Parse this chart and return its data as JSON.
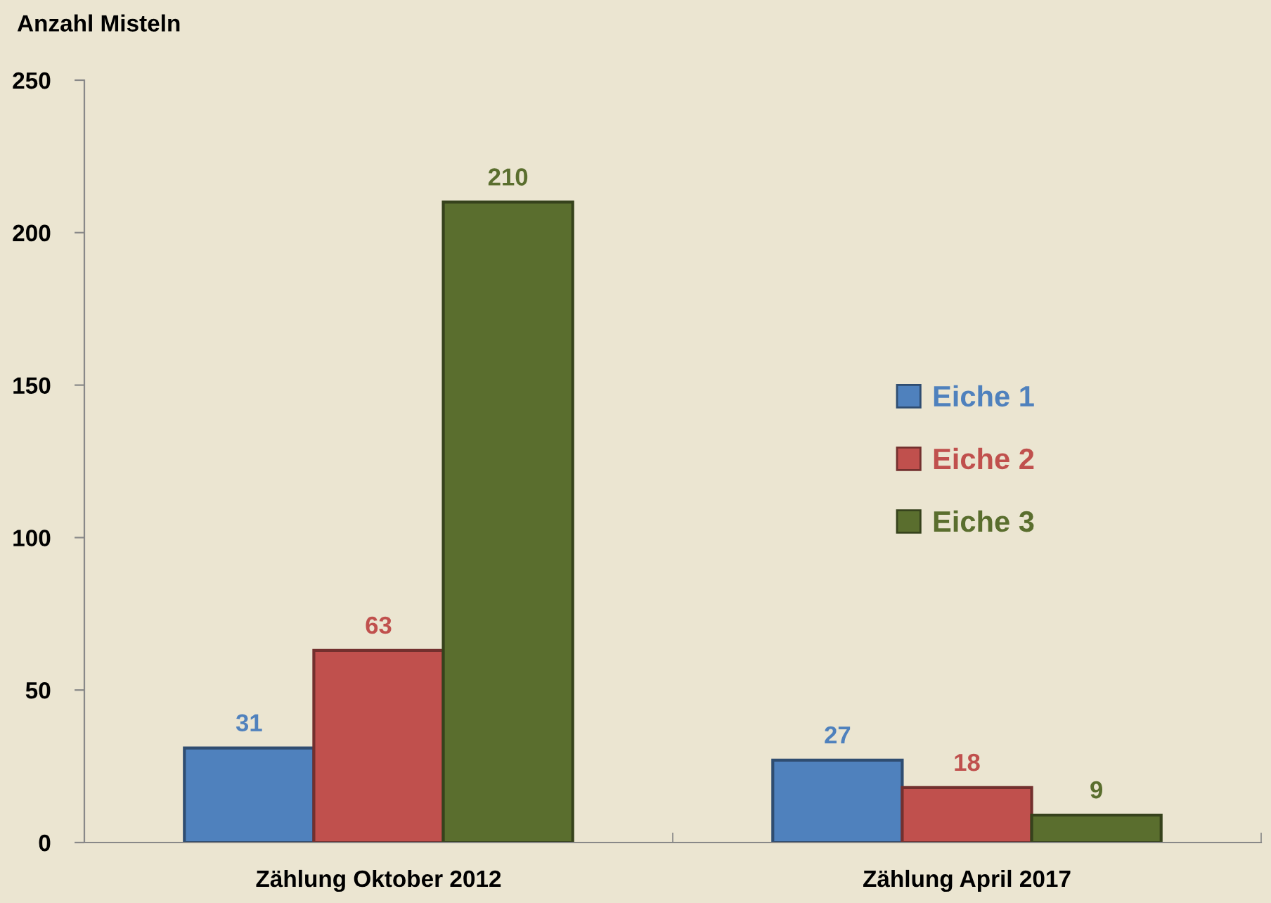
{
  "chart_data": {
    "type": "bar",
    "ylabel": "Anzahl Misteln",
    "categories": [
      "Zählung Oktober 2012",
      "Zählung April 2017"
    ],
    "series": [
      {
        "name": "Eiche 1",
        "color": "#4f81bd",
        "values": [
          31,
          27
        ]
      },
      {
        "name": "Eiche 2",
        "color": "#c0504d",
        "values": [
          63,
          18
        ]
      },
      {
        "name": "Eiche 3",
        "color": "#5a6e2e",
        "values": [
          210,
          9
        ]
      }
    ],
    "ylim": [
      0,
      250
    ],
    "yticks": [
      0,
      50,
      100,
      150,
      200,
      250
    ],
    "data_labels": true,
    "legend": "center right",
    "grid": false
  }
}
